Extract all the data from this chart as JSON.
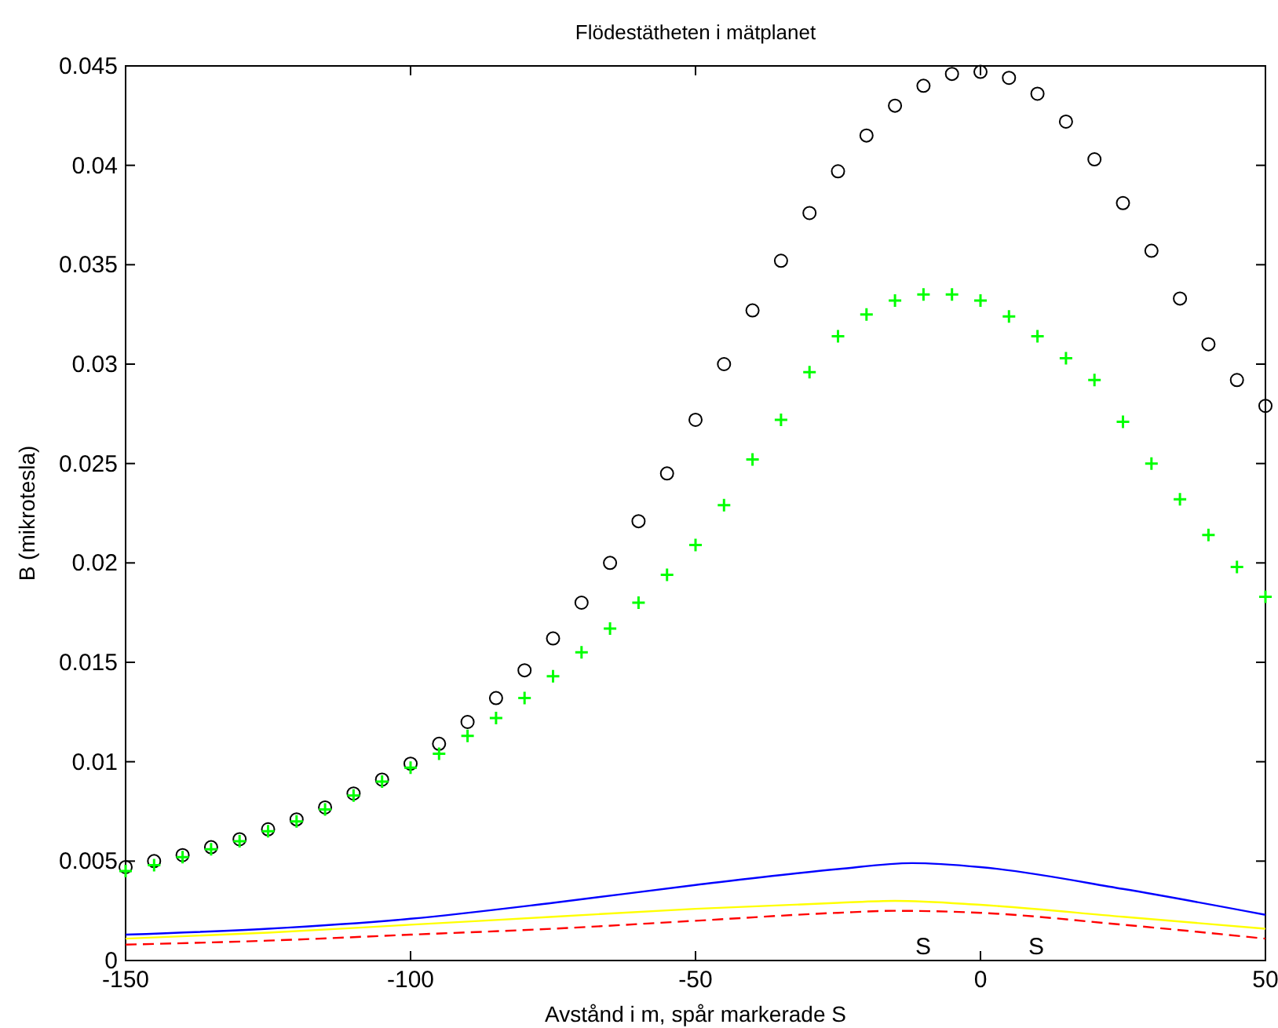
{
  "chart_data": {
    "type": "line",
    "title": "Flödestätheten i mätplanet",
    "xlabel": "Avstånd i m, spår markerade S",
    "ylabel": "B (mikrotesla)",
    "xlim": [
      -150,
      50
    ],
    "xticks": [
      -150,
      -100,
      -50,
      0,
      50
    ],
    "ylim": [
      0,
      0.045
    ],
    "yticks": [
      0,
      0.005,
      0.01,
      0.015,
      0.02,
      0.025,
      0.03,
      0.035,
      0.04,
      0.045
    ],
    "grid": false,
    "x": [
      -150,
      -145,
      -140,
      -135,
      -130,
      -125,
      -120,
      -115,
      -110,
      -105,
      -100,
      -95,
      -90,
      -85,
      -80,
      -75,
      -70,
      -65,
      -60,
      -55,
      -50,
      -45,
      -40,
      -35,
      -30,
      -25,
      -20,
      -15,
      -10,
      -5,
      0,
      5,
      10,
      15,
      20,
      25,
      30,
      35,
      40,
      45,
      50
    ],
    "series": [
      {
        "type": "scatter",
        "marker": "circle",
        "color": "#000000",
        "values": [
          0.0047,
          0.005,
          0.0053,
          0.0057,
          0.0061,
          0.0066,
          0.0071,
          0.0077,
          0.0084,
          0.0091,
          0.0099,
          0.0109,
          0.012,
          0.0132,
          0.0146,
          0.0162,
          0.018,
          0.02,
          0.0221,
          0.0245,
          0.0272,
          0.03,
          0.0327,
          0.0352,
          0.0376,
          0.0397,
          0.0415,
          0.043,
          0.044,
          0.0446,
          0.0447,
          0.0444,
          0.0436,
          0.0422,
          0.0403,
          0.0381,
          0.0357,
          0.0333,
          0.031,
          0.0292,
          0.0279
        ]
      },
      {
        "type": "scatter",
        "marker": "cross",
        "color": "#00ff00",
        "values": [
          0.0045,
          0.0048,
          0.0052,
          0.0056,
          0.006,
          0.0065,
          0.007,
          0.0076,
          0.0083,
          0.009,
          0.0097,
          0.0104,
          0.0113,
          0.0122,
          0.0132,
          0.0143,
          0.0155,
          0.0167,
          0.018,
          0.0194,
          0.0209,
          0.0229,
          0.0252,
          0.0272,
          0.0296,
          0.0314,
          0.0325,
          0.0332,
          0.0335,
          0.0335,
          0.0332,
          0.0324,
          0.0314,
          0.0303,
          0.0292,
          0.0271,
          0.025,
          0.0232,
          0.0214,
          0.0198,
          0.0183
        ]
      },
      {
        "marker": "none",
        "line_style": "solid",
        "color": "#0000ff",
        "x": [
          -150,
          -125,
          -100,
          -75,
          -50,
          -25,
          -12,
          0,
          25,
          50
        ],
        "values": [
          0.0013,
          0.0016,
          0.0021,
          0.0029,
          0.0038,
          0.0046,
          0.0049,
          0.0047,
          0.0036,
          0.0023
        ]
      },
      {
        "marker": "none",
        "line_style": "solid",
        "color": "#ffff00",
        "x": [
          -150,
          -125,
          -100,
          -75,
          -50,
          -25,
          -15,
          0,
          25,
          50
        ],
        "values": [
          0.0011,
          0.0014,
          0.0018,
          0.0022,
          0.0026,
          0.0029,
          0.003,
          0.0028,
          0.0022,
          0.0016
        ]
      },
      {
        "marker": "none",
        "line_style": "dashed",
        "color": "#ff0000",
        "x": [
          -150,
          -125,
          -100,
          -75,
          -50,
          -25,
          -15,
          0,
          25,
          50
        ],
        "values": [
          0.0008,
          0.001,
          0.0013,
          0.0016,
          0.002,
          0.0024,
          0.0025,
          0.0024,
          0.0018,
          0.0011
        ]
      }
    ],
    "annotations": [
      "S",
      "S"
    ]
  }
}
